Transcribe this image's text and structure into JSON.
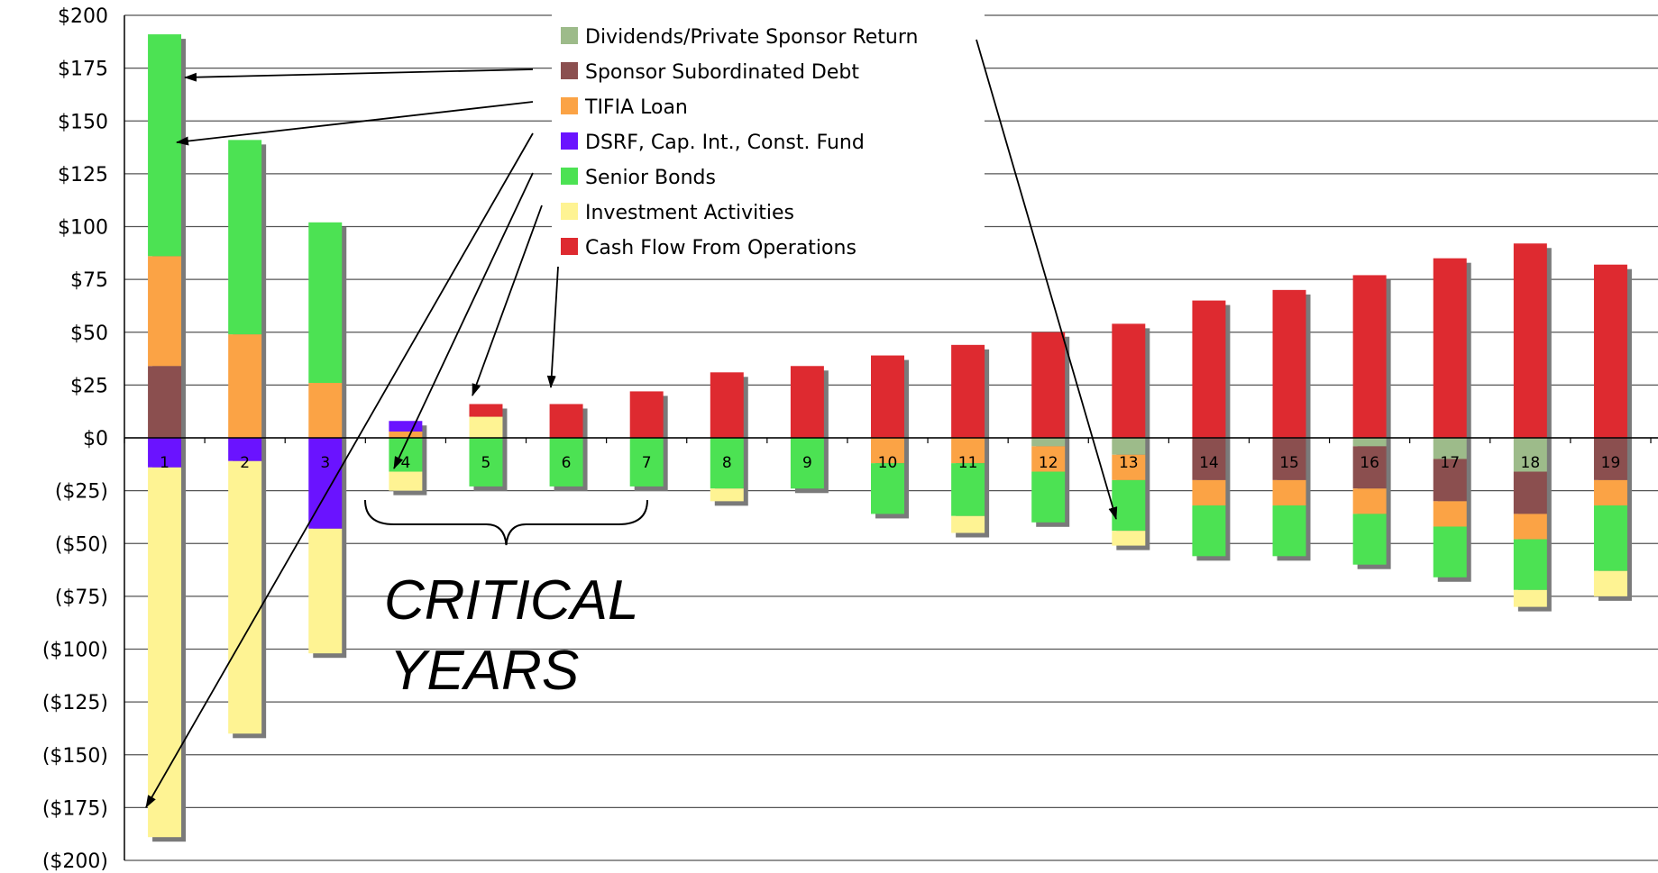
{
  "chart_data": {
    "type": "bar",
    "stacked": true,
    "title": "",
    "xlabel": "",
    "ylabel": "",
    "ylim": [
      -200,
      200
    ],
    "yticks": [
      "$200",
      "$175",
      "$150",
      "$125",
      "$100",
      "$75",
      "$50",
      "$25",
      "$0",
      "($25)",
      "($50)",
      "($75)",
      "($100)",
      "($125)",
      "($150)",
      "($175)",
      "($200)"
    ],
    "categories": [
      "1",
      "2",
      "3",
      "4",
      "5",
      "6",
      "7",
      "8",
      "9",
      "10",
      "11",
      "12",
      "13",
      "14",
      "15",
      "16",
      "17",
      "18",
      "19"
    ],
    "series": [
      {
        "name": "Dividends/Private Sponsor Return",
        "color": "#9dbb8a",
        "values": [
          0,
          0,
          0,
          0,
          0,
          0,
          0,
          0,
          0,
          0,
          0,
          -4,
          -8,
          0,
          0,
          -4,
          -10,
          -16,
          0
        ]
      },
      {
        "name": "Sponsor Subordinated Debt",
        "color": "#8b4f4f",
        "values": [
          34,
          0,
          0,
          0,
          0,
          0,
          0,
          0,
          0,
          0,
          0,
          0,
          0,
          -20,
          -20,
          -20,
          -20,
          -20,
          -20
        ]
      },
      {
        "name": "TIFIA Loan",
        "color": "#fba345",
        "values": [
          52,
          49,
          26,
          3,
          0,
          0,
          0,
          0,
          0,
          -12,
          -12,
          -12,
          -12,
          -12,
          -12,
          -12,
          -12,
          -12,
          -12
        ]
      },
      {
        "name": "DSRF, Cap. Int., Const. Fund",
        "color": "#6a13ff",
        "values": [
          -14,
          -11,
          -43,
          5,
          0,
          0,
          0,
          0,
          0,
          0,
          0,
          0,
          0,
          0,
          0,
          0,
          0,
          0,
          0
        ]
      },
      {
        "name": "Senior Bonds",
        "color": "#4ce253",
        "values": [
          105,
          92,
          76,
          -16,
          -23,
          -23,
          -23,
          -24,
          -24,
          -24,
          -25,
          -24,
          -24,
          -24,
          -24,
          -24,
          -24,
          -24,
          -31
        ]
      },
      {
        "name": "Investment Activities",
        "color": "#fef393",
        "values": [
          -175,
          -129,
          -59,
          -9,
          10,
          0,
          0,
          -6,
          0,
          0,
          -8,
          0,
          -7,
          0,
          0,
          0,
          0,
          -8,
          -12
        ]
      },
      {
        "name": "Cash Flow From Operations",
        "color": "#de2a30",
        "values": [
          0,
          0,
          0,
          0,
          6,
          16,
          22,
          31,
          34,
          39,
          44,
          50,
          54,
          65,
          70,
          77,
          85,
          92,
          82
        ]
      }
    ],
    "annotations": [
      "CRITICAL",
      "YEARS"
    ],
    "grid": true,
    "legend_position": "top-center"
  }
}
